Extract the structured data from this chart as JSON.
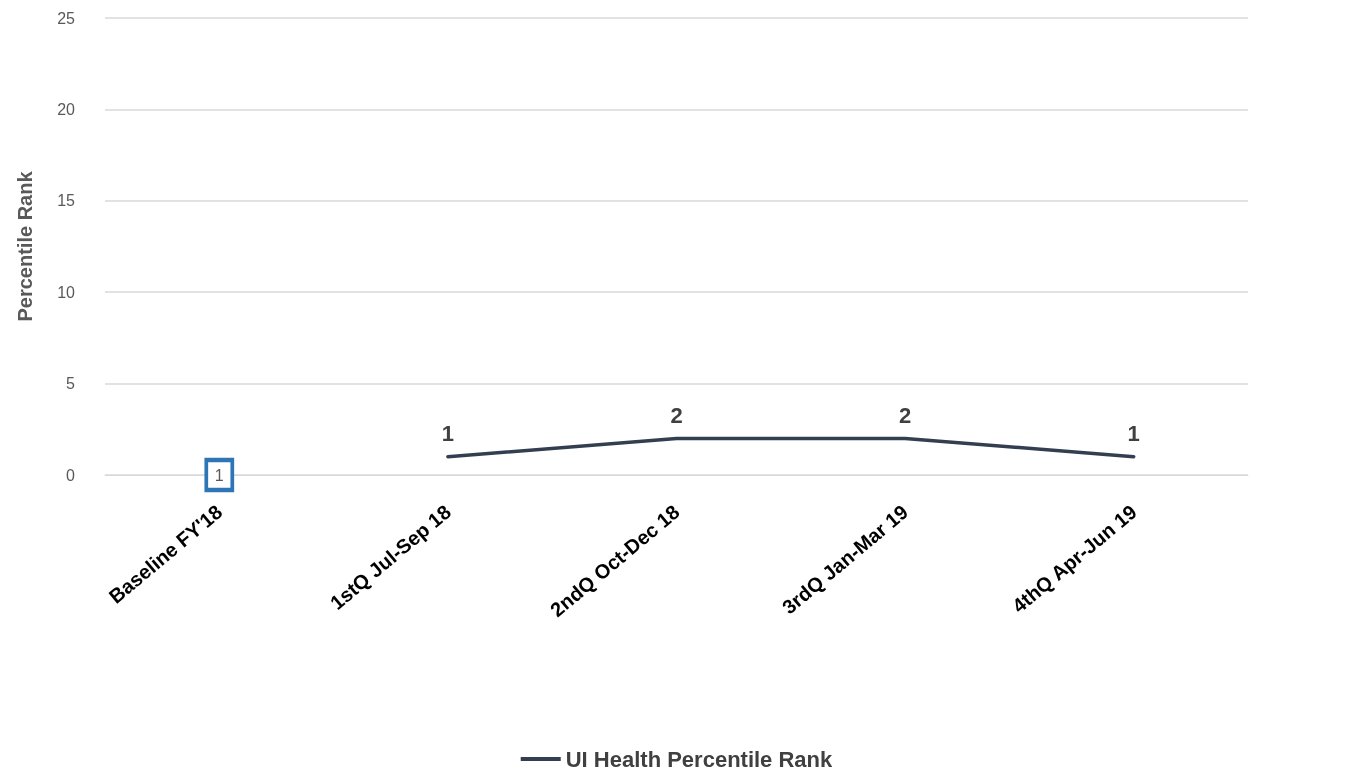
{
  "chart_data": {
    "type": "line",
    "ylabel": "Percentile Rank",
    "categories": [
      "Baseline FY'18",
      "1stQ Jul-Sep 18",
      "2ndQ Oct-Dec 18",
      "3rdQ Jan-Mar 19",
      "4thQ Apr-Jun 19"
    ],
    "series": [
      {
        "name": "UI Health Percentile Rank",
        "color": "#333f50",
        "values": [
          null,
          1,
          2,
          2,
          1
        ]
      }
    ],
    "ylim": [
      0,
      25
    ],
    "yticks": [
      0,
      5,
      10,
      15,
      20,
      25
    ],
    "grid": "y",
    "legend": "bottom",
    "marker": "none",
    "line_style": "solid",
    "data_labels": true,
    "annotations": [
      {
        "text": "1",
        "x": "Baseline FY'18",
        "y": 0
      }
    ]
  }
}
